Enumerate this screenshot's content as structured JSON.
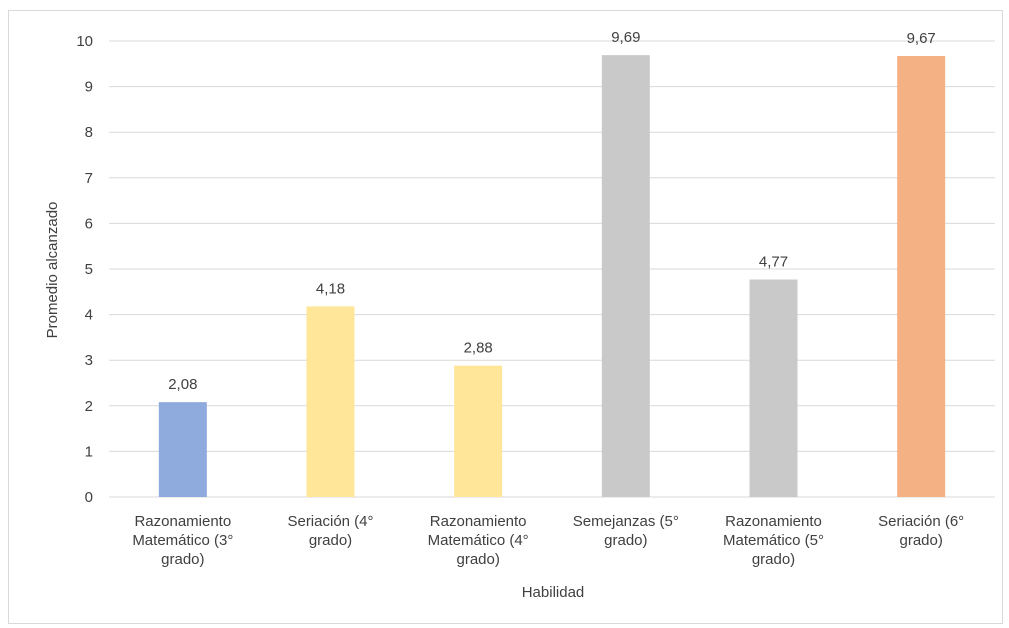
{
  "chart_data": {
    "type": "bar",
    "title": "",
    "xlabel": "Habilidad",
    "ylabel": "Promedio alcanzado",
    "ylim": [
      0,
      10
    ],
    "yticks": [
      0,
      1,
      2,
      3,
      4,
      5,
      6,
      7,
      8,
      9,
      10
    ],
    "grid": true,
    "legend": "none",
    "categories": [
      [
        "Razonamiento",
        "Matemático (3°",
        "grado)"
      ],
      [
        "Seriación (4°",
        "grado)"
      ],
      [
        "Razonamiento",
        "Matemático (4°",
        "grado)"
      ],
      [
        "Semejanzas (5°",
        "grado)"
      ],
      [
        "Razonamiento",
        "Matemático (5°",
        "grado)"
      ],
      [
        "Seriación (6°",
        "grado)"
      ]
    ],
    "values": [
      2.08,
      4.18,
      2.88,
      9.69,
      4.77,
      9.67
    ],
    "data_labels": [
      "2,08",
      "4,18",
      "2,88",
      "9,69",
      "4,77",
      "9,67"
    ],
    "colors": [
      "#8faadc",
      "#ffe699",
      "#ffe699",
      "#c9c9c9",
      "#c9c9c9",
      "#f4b183"
    ]
  }
}
